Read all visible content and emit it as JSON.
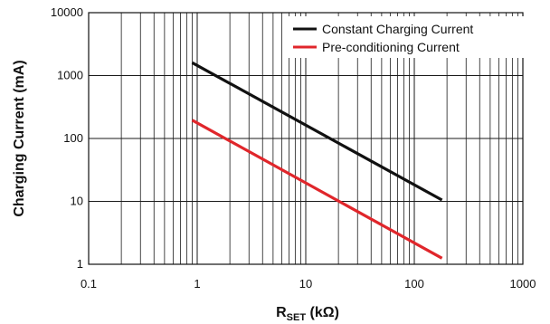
{
  "chart_data": {
    "type": "line",
    "title": "",
    "xscale": "log",
    "yscale": "log",
    "xlim": [
      0.1,
      1000
    ],
    "ylim": [
      1,
      10000
    ],
    "grid": true,
    "legend_position": "top-right",
    "xlabel": {
      "main": "R",
      "subscript": "SET",
      "unit": " (kΩ)"
    },
    "ylabel": "Charging Current (mA)",
    "x_tick_labels": [
      "0.1",
      "1",
      "10",
      "100",
      "1000"
    ],
    "y_tick_labels": [
      "1",
      "10",
      "100",
      "1000",
      "10000"
    ],
    "series": [
      {
        "name": "Constant Charging Current",
        "color": "#111111",
        "x": [
          0.9,
          180
        ],
        "y": [
          1600,
          10.5
        ]
      },
      {
        "name": "Pre-conditioning Current",
        "color": "#e0262b",
        "x": [
          0.9,
          180
        ],
        "y": [
          195,
          1.25
        ]
      }
    ]
  }
}
